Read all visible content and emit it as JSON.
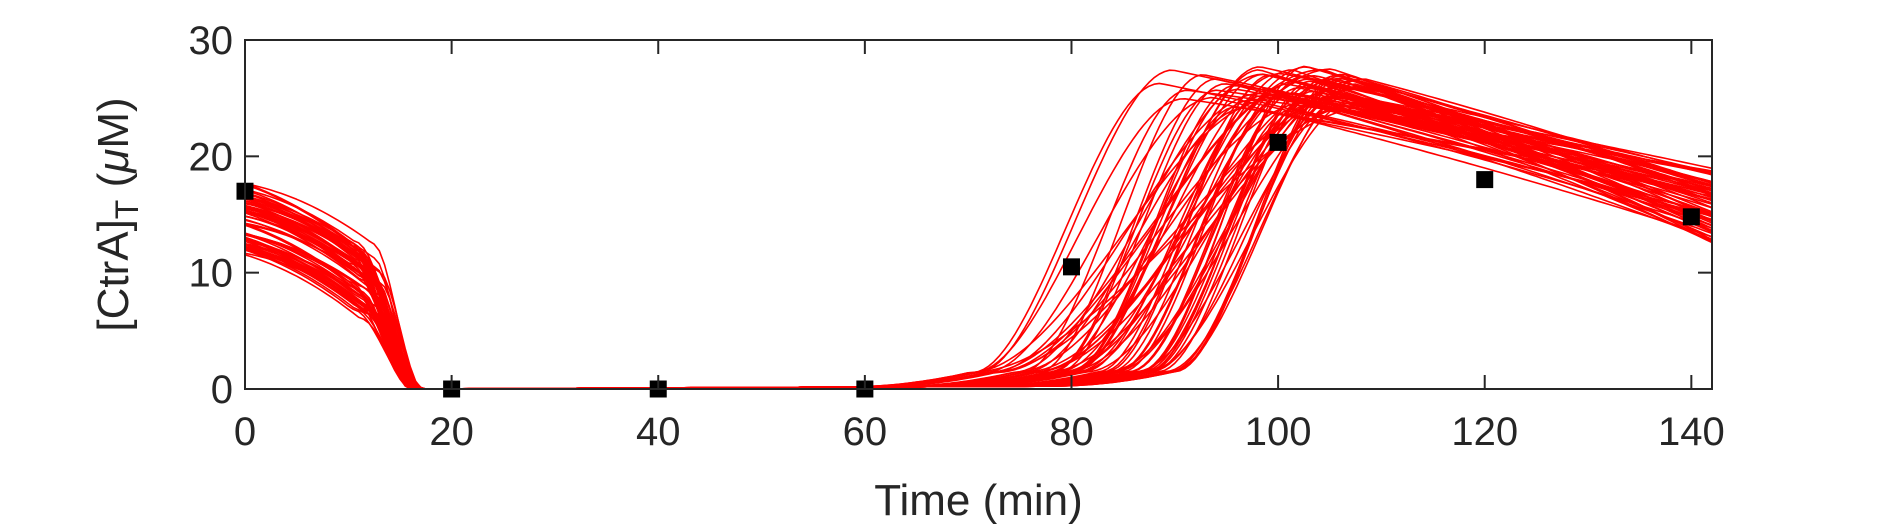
{
  "chart_data": {
    "type": "line",
    "xlabel": "Time (min)",
    "ylabel": {
      "prefix": "[CtrA]",
      "subscript": "T",
      "unit_open": " (",
      "unit_greek": "μ",
      "unit_rest": "M)"
    },
    "xlim": [
      0,
      142
    ],
    "ylim": [
      0,
      30
    ],
    "xticks": [
      0,
      20,
      40,
      60,
      80,
      100,
      120,
      140
    ],
    "yticks": [
      0,
      10,
      20,
      30
    ],
    "grid": false,
    "legend": "none",
    "colors": {
      "simulations": "#ff0000",
      "data": "#000000",
      "axes": "#262626"
    },
    "simulations": {
      "count": 70,
      "description_params": {
        "initial_range": [
          11.5,
          17.8
        ],
        "drop_start_range": [
          10,
          13
        ],
        "zero_by_range": [
          16,
          17.5
        ],
        "rise_start_range": [
          70,
          90
        ],
        "peak_range": [
          24,
          27.8
        ],
        "peak_time_range": [
          88,
          110
        ],
        "end_range": [
          12.5,
          19
        ]
      }
    },
    "series": [
      {
        "name": "",
        "x": [
          0,
          20,
          40,
          60,
          80,
          100,
          120,
          140
        ],
        "y": [
          17,
          0,
          0,
          0,
          10.5,
          21.2,
          18,
          14.8
        ],
        "marker": "square"
      }
    ]
  }
}
